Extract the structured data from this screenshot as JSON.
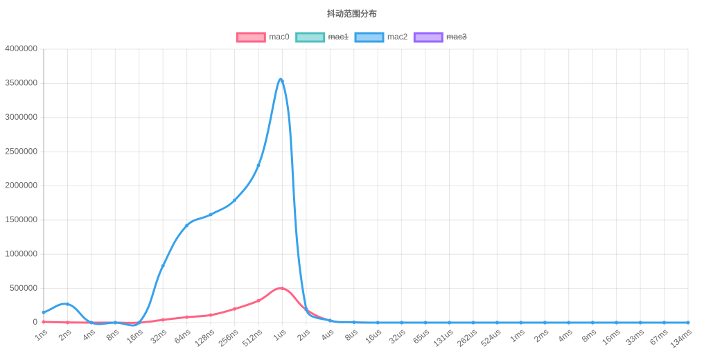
{
  "chart_data": {
    "type": "line",
    "title": "抖动范围分布",
    "categories": [
      "1ns",
      "2ns",
      "4ns",
      "8ns",
      "16ns",
      "32ns",
      "64ns",
      "128ns",
      "256ns",
      "512ns",
      "1us",
      "2us",
      "4us",
      "8us",
      "16us",
      "32us",
      "65us",
      "131us",
      "262us",
      "524us",
      "1ms",
      "2ms",
      "4ms",
      "8ms",
      "16ms",
      "33ms",
      "67ms",
      "134ms"
    ],
    "series": [
      {
        "name": "mac0",
        "color": "#ff6384",
        "values": [
          10000,
          3000,
          0,
          0,
          0,
          40000,
          80000,
          110000,
          200000,
          320000,
          500000,
          190000,
          30000,
          5000,
          0,
          0,
          0,
          0,
          0,
          0,
          0,
          0,
          0,
          0,
          0,
          0,
          0,
          0
        ]
      },
      {
        "name": "mac1",
        "color": "#4bc0c0",
        "hidden": true
      },
      {
        "name": "mac2",
        "color": "#36a2eb",
        "values": [
          150000,
          270000,
          0,
          0,
          0,
          830000,
          1420000,
          1580000,
          1790000,
          2300000,
          3530000,
          200000,
          30000,
          5000,
          0,
          0,
          0,
          0,
          0,
          0,
          0,
          0,
          0,
          0,
          0,
          0,
          0,
          0
        ]
      },
      {
        "name": "mac3",
        "color": "#9966ff",
        "hidden": true
      }
    ],
    "ylim": [
      0,
      4000000
    ],
    "yticks": [
      0,
      500000,
      1000000,
      1500000,
      2000000,
      2500000,
      3000000,
      3500000,
      4000000
    ],
    "grid": true,
    "legend": "top"
  }
}
